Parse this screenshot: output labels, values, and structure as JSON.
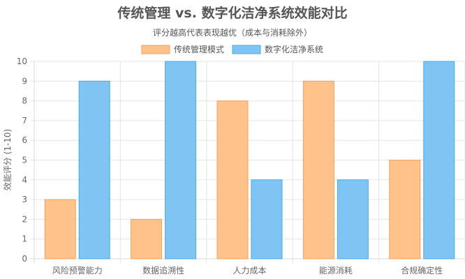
{
  "chart_data": {
    "type": "bar",
    "title": "传统管理 vs. 数字化洁净系统效能对比",
    "subtitle": "评分越高代表表现越优（成本与消耗除外）",
    "xlabel": "",
    "ylabel": "效能评分 (1-10)",
    "ylim": [
      0,
      10
    ],
    "yticks": [
      0,
      1,
      2,
      3,
      4,
      5,
      6,
      7,
      8,
      9,
      10
    ],
    "grid": true,
    "legend_position": "top",
    "categories": [
      "风险预警能力",
      "数据追溯性",
      "人力成本",
      "能源消耗",
      "合规确定性"
    ],
    "series": [
      {
        "name": "传统管理模式",
        "values": [
          3,
          2,
          8,
          9,
          5
        ],
        "color": "#ffc28a",
        "border": "#f7a258"
      },
      {
        "name": "数字化洁净系统",
        "values": [
          9,
          10,
          4,
          4,
          10
        ],
        "color": "#80c4f4",
        "border": "#4aa8ea"
      }
    ]
  }
}
